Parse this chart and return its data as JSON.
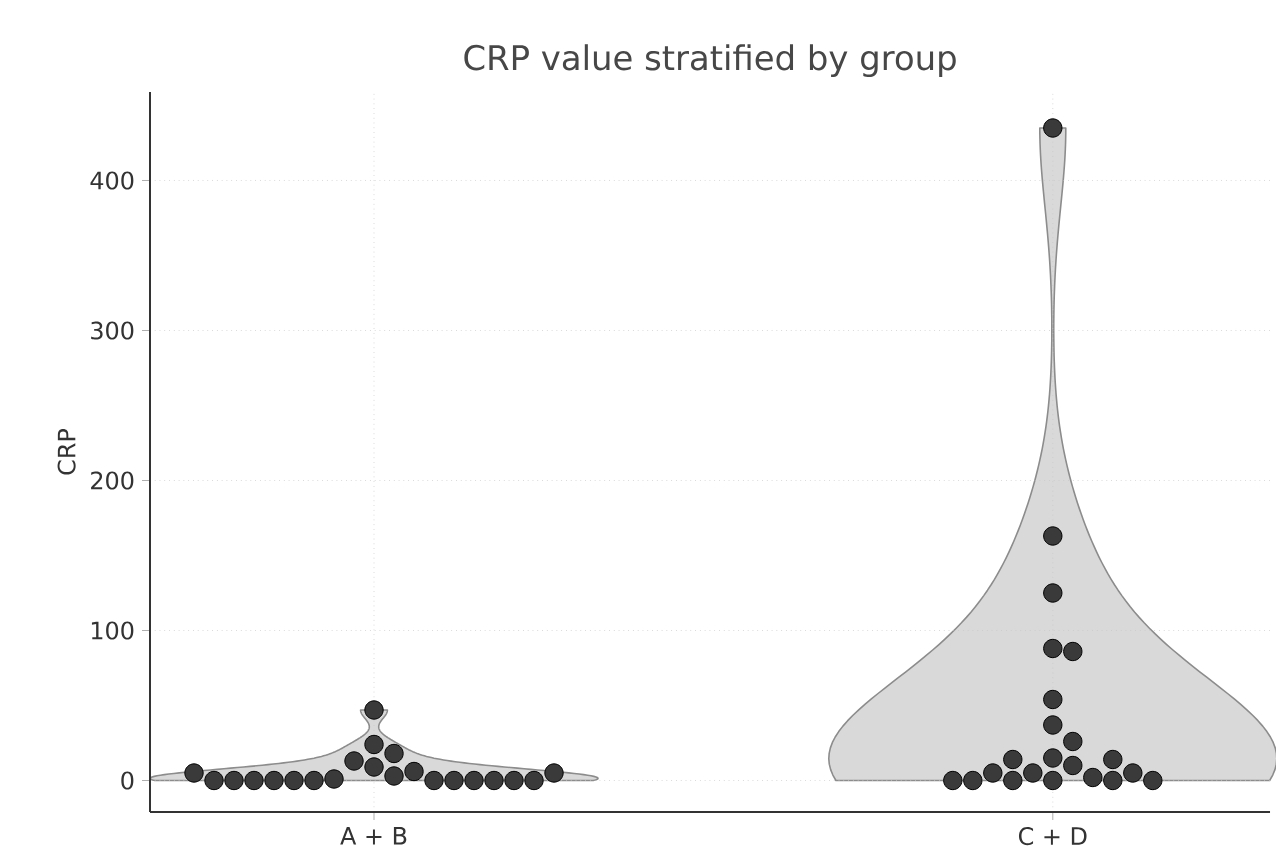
{
  "chart_data": {
    "type": "scatter",
    "title": "CRP value stratified by group",
    "ylabel": "CRP",
    "categories": [
      "A + B",
      "C + D"
    ],
    "ylim": [
      -21,
      459
    ],
    "yticks": [
      0,
      100,
      200,
      300,
      400
    ],
    "grid": true,
    "series": [
      {
        "color": "#3a3a3a",
        "x": [
          "A + B",
          "A + B",
          "A + B",
          "A + B",
          "A + B",
          "A + B",
          "A + B",
          "A + B",
          "A + B",
          "A + B",
          "A + B",
          "A + B",
          "A + B",
          "A + B",
          "A + B",
          "A + B",
          "A + B",
          "A + B",
          "A + B",
          "A + B",
          "A + B",
          "A + B"
        ],
        "values": [
          47,
          24,
          18,
          13,
          9,
          6,
          3,
          1,
          0,
          0,
          0,
          0,
          0,
          0,
          0,
          0,
          0,
          0,
          0,
          0,
          5,
          5
        ]
      },
      {
        "color": "#3a3a3a",
        "x": [
          "C + D",
          "C + D",
          "C + D",
          "C + D",
          "C + D",
          "C + D",
          "C + D",
          "C + D",
          "C + D",
          "C + D",
          "C + D",
          "C + D",
          "C + D",
          "C + D",
          "C + D",
          "C + D",
          "C + D",
          "C + D",
          "C + D",
          "C + D",
          "C + D",
          "C + D"
        ],
        "values": [
          435,
          163,
          125,
          88,
          86,
          54,
          37,
          26,
          15,
          10,
          5,
          2,
          0,
          14,
          14,
          5,
          5,
          0,
          0,
          0,
          0,
          0
        ]
      }
    ]
  }
}
